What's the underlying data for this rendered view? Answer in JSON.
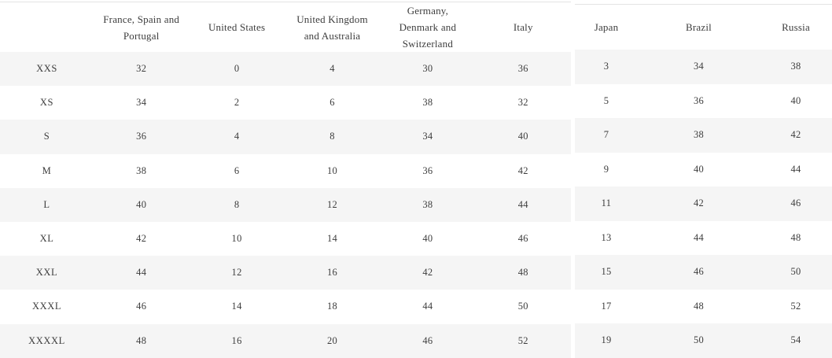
{
  "size_chart": {
    "left_table": {
      "header": [
        "",
        "France, Spain and Portugal",
        "United States",
        "United Kingdom and Australia",
        "Germany, Denmark and Switzerland",
        "Italy"
      ],
      "rows": [
        {
          "size": "XXS",
          "values": [
            "32",
            "0",
            "4",
            "30",
            "36"
          ]
        },
        {
          "size": "XS",
          "values": [
            "34",
            "2",
            "6",
            "38",
            "32"
          ]
        },
        {
          "size": "S",
          "values": [
            "36",
            "4",
            "8",
            "34",
            "40"
          ]
        },
        {
          "size": "M",
          "values": [
            "38",
            "6",
            "10",
            "36",
            "42"
          ]
        },
        {
          "size": "L",
          "values": [
            "40",
            "8",
            "12",
            "38",
            "44"
          ]
        },
        {
          "size": "XL",
          "values": [
            "42",
            "10",
            "14",
            "40",
            "46"
          ]
        },
        {
          "size": "XXL",
          "values": [
            "44",
            "12",
            "16",
            "42",
            "48"
          ]
        },
        {
          "size": "XXXL",
          "values": [
            "46",
            "14",
            "18",
            "44",
            "50"
          ]
        },
        {
          "size": "XXXXL",
          "values": [
            "48",
            "16",
            "20",
            "46",
            "52"
          ]
        }
      ]
    },
    "right_table": {
      "header": [
        "Japan",
        "Brazil",
        "Russia"
      ],
      "rows": [
        [
          "3",
          "34",
          "38"
        ],
        [
          "5",
          "36",
          "40"
        ],
        [
          "7",
          "38",
          "42"
        ],
        [
          "9",
          "40",
          "44"
        ],
        [
          "11",
          "42",
          "46"
        ],
        [
          "13",
          "44",
          "48"
        ],
        [
          "15",
          "46",
          "50"
        ],
        [
          "17",
          "48",
          "52"
        ],
        [
          "19",
          "50",
          "54"
        ]
      ]
    },
    "colors": {
      "stripe": "#f5f5f5",
      "background": "#ffffff",
      "text": "#3d3d3d",
      "border": "#e4e4e4"
    }
  }
}
